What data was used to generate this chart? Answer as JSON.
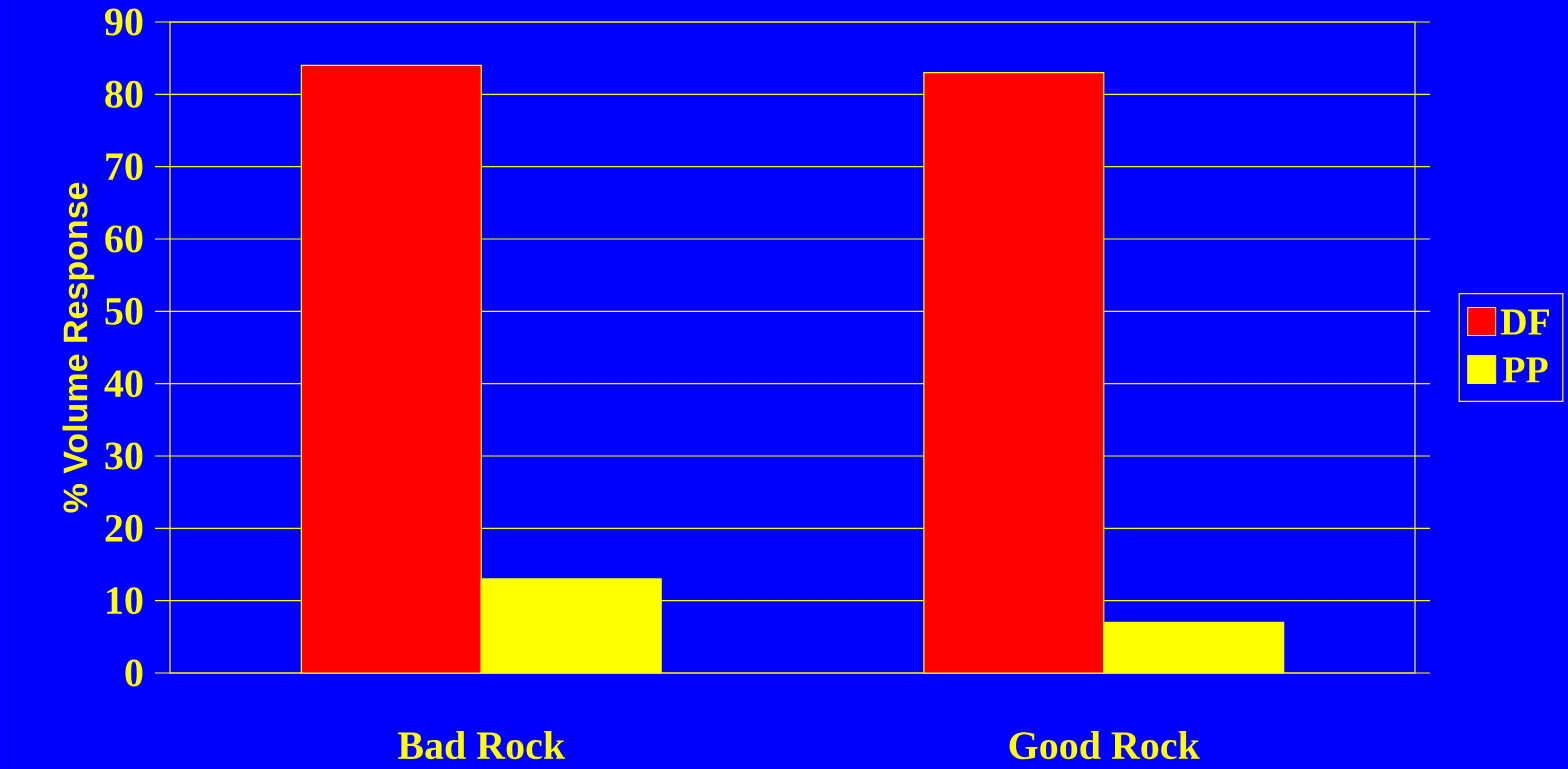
{
  "chart_data": {
    "type": "bar",
    "ylabel": "% Volume Response",
    "categories": [
      "Bad Rock",
      "Good Rock"
    ],
    "series": [
      {
        "name": "DF",
        "color": "#ff0000",
        "values": [
          84,
          83
        ]
      },
      {
        "name": "PP",
        "color": "#ffff00",
        "values": [
          13,
          7
        ]
      }
    ],
    "ylim": [
      0,
      90
    ],
    "yticks": [
      0,
      10,
      20,
      30,
      40,
      50,
      60,
      70,
      80,
      90
    ],
    "grid": "y",
    "legend": "right"
  }
}
